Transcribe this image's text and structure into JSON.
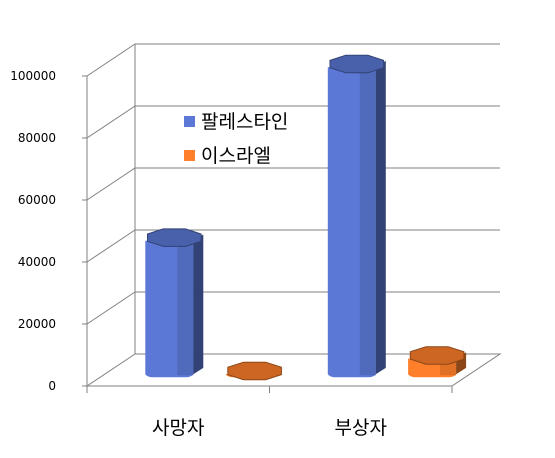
{
  "chart_data": {
    "type": "bar",
    "style": "3d-cylinder",
    "title": "",
    "xlabel": "",
    "ylabel": "",
    "categories": [
      "사망자",
      "부상자"
    ],
    "series": [
      {
        "name": "팔레스타인",
        "color": "#5b78d6",
        "values": [
          44000,
          100000
        ]
      },
      {
        "name": "이스라엘",
        "color": "#ff7f2a",
        "values": [
          1000,
          6000
        ]
      }
    ],
    "ylim": [
      0,
      100000
    ],
    "yticks": [
      0,
      20000,
      40000,
      60000,
      80000,
      100000
    ],
    "ytick_labels": [
      "0",
      "20000",
      "40000",
      "60000",
      "80000",
      "100000"
    ],
    "grid": true,
    "legend_position": "top-left"
  }
}
